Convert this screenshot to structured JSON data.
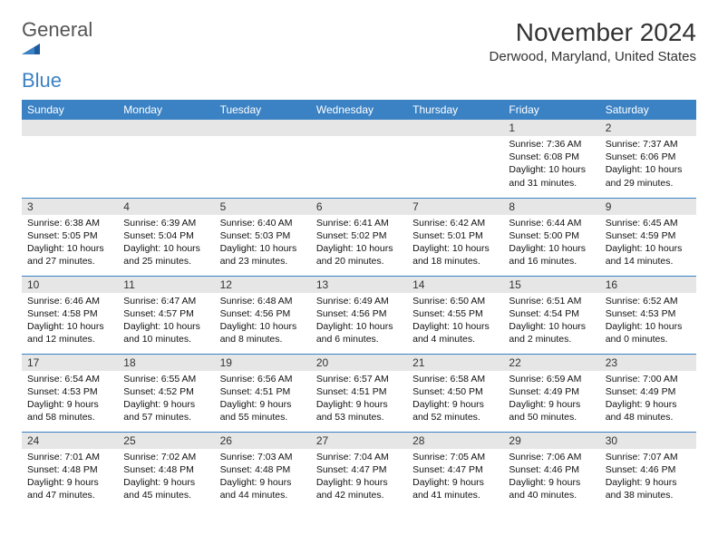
{
  "logo": {
    "general": "General",
    "blue": "Blue"
  },
  "title": "November 2024",
  "location": "Derwood, Maryland, United States",
  "weekdays": [
    "Sunday",
    "Monday",
    "Tuesday",
    "Wednesday",
    "Thursday",
    "Friday",
    "Saturday"
  ],
  "colors": {
    "headerBg": "#3b82c4",
    "headerText": "#ffffff",
    "dayNumBg": "#e6e6e6",
    "border": "#3b82c4",
    "logoBlue": "#3b82c4",
    "logoGray": "#555555",
    "background": "#ffffff",
    "text": "#111111"
  },
  "weeks": [
    [
      null,
      null,
      null,
      null,
      null,
      {
        "n": "1",
        "sunrise": "Sunrise: 7:36 AM",
        "sunset": "Sunset: 6:08 PM",
        "daylight": "Daylight: 10 hours and 31 minutes."
      },
      {
        "n": "2",
        "sunrise": "Sunrise: 7:37 AM",
        "sunset": "Sunset: 6:06 PM",
        "daylight": "Daylight: 10 hours and 29 minutes."
      }
    ],
    [
      {
        "n": "3",
        "sunrise": "Sunrise: 6:38 AM",
        "sunset": "Sunset: 5:05 PM",
        "daylight": "Daylight: 10 hours and 27 minutes."
      },
      {
        "n": "4",
        "sunrise": "Sunrise: 6:39 AM",
        "sunset": "Sunset: 5:04 PM",
        "daylight": "Daylight: 10 hours and 25 minutes."
      },
      {
        "n": "5",
        "sunrise": "Sunrise: 6:40 AM",
        "sunset": "Sunset: 5:03 PM",
        "daylight": "Daylight: 10 hours and 23 minutes."
      },
      {
        "n": "6",
        "sunrise": "Sunrise: 6:41 AM",
        "sunset": "Sunset: 5:02 PM",
        "daylight": "Daylight: 10 hours and 20 minutes."
      },
      {
        "n": "7",
        "sunrise": "Sunrise: 6:42 AM",
        "sunset": "Sunset: 5:01 PM",
        "daylight": "Daylight: 10 hours and 18 minutes."
      },
      {
        "n": "8",
        "sunrise": "Sunrise: 6:44 AM",
        "sunset": "Sunset: 5:00 PM",
        "daylight": "Daylight: 10 hours and 16 minutes."
      },
      {
        "n": "9",
        "sunrise": "Sunrise: 6:45 AM",
        "sunset": "Sunset: 4:59 PM",
        "daylight": "Daylight: 10 hours and 14 minutes."
      }
    ],
    [
      {
        "n": "10",
        "sunrise": "Sunrise: 6:46 AM",
        "sunset": "Sunset: 4:58 PM",
        "daylight": "Daylight: 10 hours and 12 minutes."
      },
      {
        "n": "11",
        "sunrise": "Sunrise: 6:47 AM",
        "sunset": "Sunset: 4:57 PM",
        "daylight": "Daylight: 10 hours and 10 minutes."
      },
      {
        "n": "12",
        "sunrise": "Sunrise: 6:48 AM",
        "sunset": "Sunset: 4:56 PM",
        "daylight": "Daylight: 10 hours and 8 minutes."
      },
      {
        "n": "13",
        "sunrise": "Sunrise: 6:49 AM",
        "sunset": "Sunset: 4:56 PM",
        "daylight": "Daylight: 10 hours and 6 minutes."
      },
      {
        "n": "14",
        "sunrise": "Sunrise: 6:50 AM",
        "sunset": "Sunset: 4:55 PM",
        "daylight": "Daylight: 10 hours and 4 minutes."
      },
      {
        "n": "15",
        "sunrise": "Sunrise: 6:51 AM",
        "sunset": "Sunset: 4:54 PM",
        "daylight": "Daylight: 10 hours and 2 minutes."
      },
      {
        "n": "16",
        "sunrise": "Sunrise: 6:52 AM",
        "sunset": "Sunset: 4:53 PM",
        "daylight": "Daylight: 10 hours and 0 minutes."
      }
    ],
    [
      {
        "n": "17",
        "sunrise": "Sunrise: 6:54 AM",
        "sunset": "Sunset: 4:53 PM",
        "daylight": "Daylight: 9 hours and 58 minutes."
      },
      {
        "n": "18",
        "sunrise": "Sunrise: 6:55 AM",
        "sunset": "Sunset: 4:52 PM",
        "daylight": "Daylight: 9 hours and 57 minutes."
      },
      {
        "n": "19",
        "sunrise": "Sunrise: 6:56 AM",
        "sunset": "Sunset: 4:51 PM",
        "daylight": "Daylight: 9 hours and 55 minutes."
      },
      {
        "n": "20",
        "sunrise": "Sunrise: 6:57 AM",
        "sunset": "Sunset: 4:51 PM",
        "daylight": "Daylight: 9 hours and 53 minutes."
      },
      {
        "n": "21",
        "sunrise": "Sunrise: 6:58 AM",
        "sunset": "Sunset: 4:50 PM",
        "daylight": "Daylight: 9 hours and 52 minutes."
      },
      {
        "n": "22",
        "sunrise": "Sunrise: 6:59 AM",
        "sunset": "Sunset: 4:49 PM",
        "daylight": "Daylight: 9 hours and 50 minutes."
      },
      {
        "n": "23",
        "sunrise": "Sunrise: 7:00 AM",
        "sunset": "Sunset: 4:49 PM",
        "daylight": "Daylight: 9 hours and 48 minutes."
      }
    ],
    [
      {
        "n": "24",
        "sunrise": "Sunrise: 7:01 AM",
        "sunset": "Sunset: 4:48 PM",
        "daylight": "Daylight: 9 hours and 47 minutes."
      },
      {
        "n": "25",
        "sunrise": "Sunrise: 7:02 AM",
        "sunset": "Sunset: 4:48 PM",
        "daylight": "Daylight: 9 hours and 45 minutes."
      },
      {
        "n": "26",
        "sunrise": "Sunrise: 7:03 AM",
        "sunset": "Sunset: 4:48 PM",
        "daylight": "Daylight: 9 hours and 44 minutes."
      },
      {
        "n": "27",
        "sunrise": "Sunrise: 7:04 AM",
        "sunset": "Sunset: 4:47 PM",
        "daylight": "Daylight: 9 hours and 42 minutes."
      },
      {
        "n": "28",
        "sunrise": "Sunrise: 7:05 AM",
        "sunset": "Sunset: 4:47 PM",
        "daylight": "Daylight: 9 hours and 41 minutes."
      },
      {
        "n": "29",
        "sunrise": "Sunrise: 7:06 AM",
        "sunset": "Sunset: 4:46 PM",
        "daylight": "Daylight: 9 hours and 40 minutes."
      },
      {
        "n": "30",
        "sunrise": "Sunrise: 7:07 AM",
        "sunset": "Sunset: 4:46 PM",
        "daylight": "Daylight: 9 hours and 38 minutes."
      }
    ]
  ]
}
